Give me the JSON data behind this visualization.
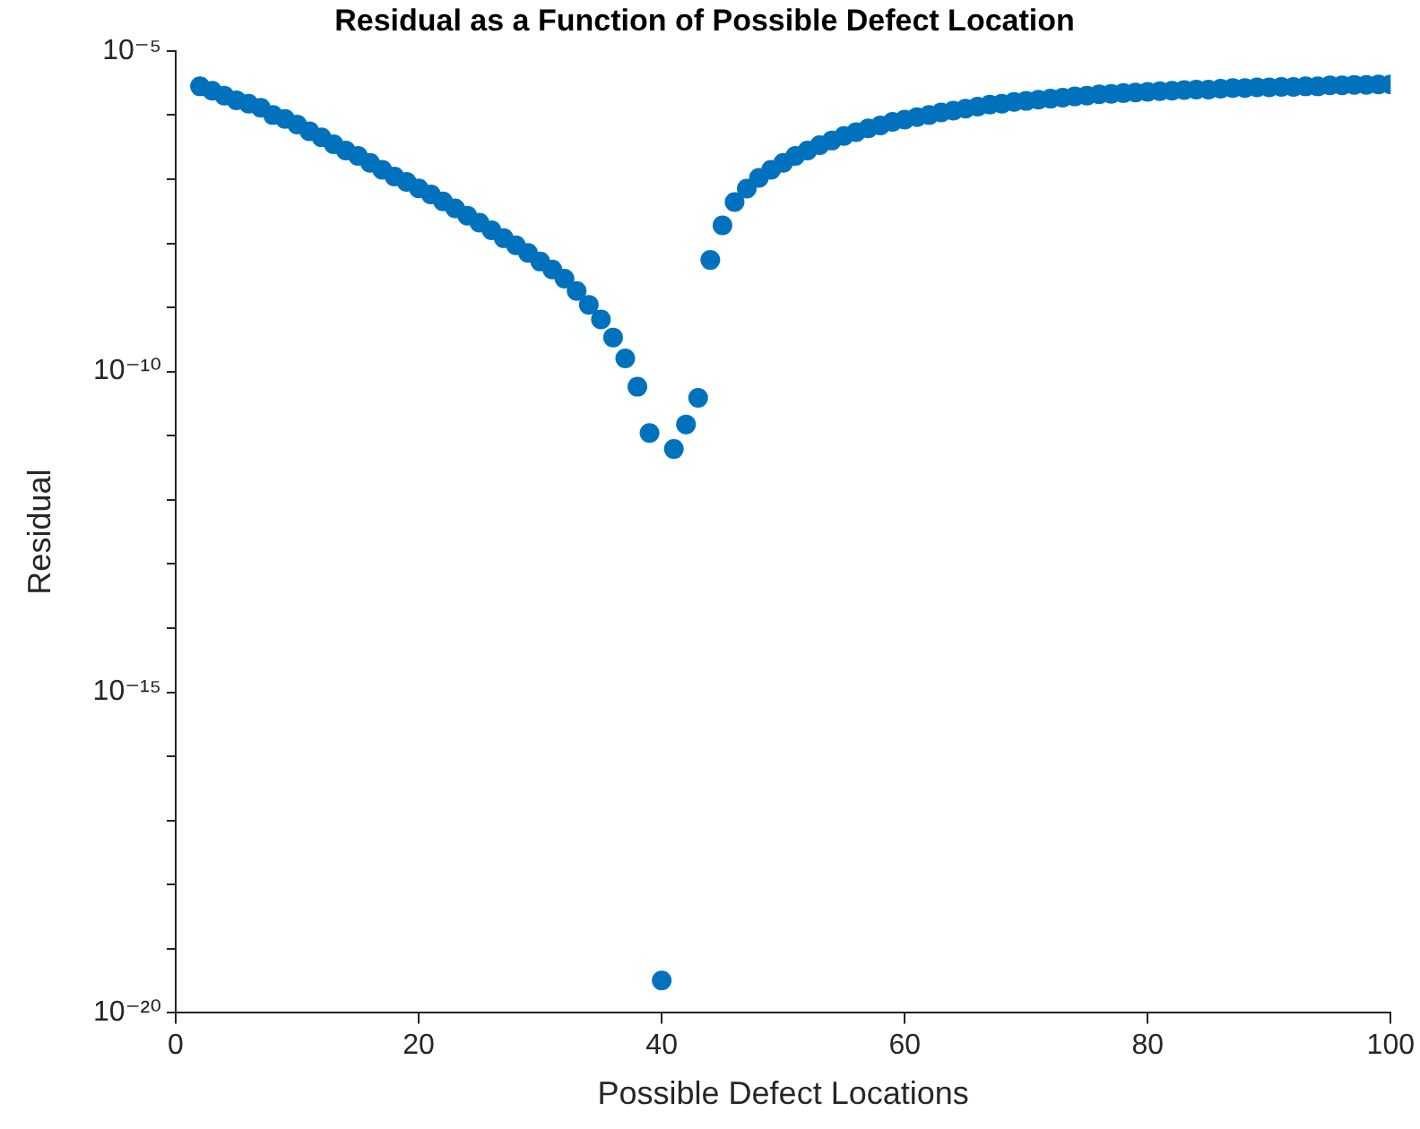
{
  "chart_data": {
    "type": "scatter",
    "title": "Residual as a Function of Possible Defect Location",
    "xlabel": "Possible Defect Locations",
    "ylabel": "Residual",
    "log": "y",
    "grid": false,
    "legend": false,
    "marker": "circle",
    "xlim": [
      0,
      100
    ],
    "xticks": [
      0,
      20,
      40,
      60,
      80,
      100
    ],
    "ylim": [
      1e-20,
      1e-05
    ],
    "yticks": [
      {
        "value": 1e-20,
        "label": "10⁻²⁰"
      },
      {
        "value": 1e-19,
        "label": null
      },
      {
        "value": 1e-18,
        "label": null
      },
      {
        "value": 1e-17,
        "label": null
      },
      {
        "value": 1e-16,
        "label": null
      },
      {
        "value": 1e-15,
        "label": "10⁻¹⁵"
      },
      {
        "value": 1e-14,
        "label": null
      },
      {
        "value": 1e-13,
        "label": null
      },
      {
        "value": 1e-12,
        "label": null
      },
      {
        "value": 1e-11,
        "label": null
      },
      {
        "value": 1e-10,
        "label": "10⁻¹⁰"
      },
      {
        "value": 1e-09,
        "label": null
      },
      {
        "value": 1e-08,
        "label": null
      },
      {
        "value": 1e-07,
        "label": null
      },
      {
        "value": 1e-06,
        "label": null
      },
      {
        "value": 1e-05,
        "label": "10⁻⁵"
      }
    ],
    "x": [
      2,
      3,
      4,
      5,
      6,
      7,
      8,
      9,
      10,
      11,
      12,
      13,
      14,
      15,
      16,
      17,
      18,
      19,
      20,
      21,
      22,
      23,
      24,
      25,
      26,
      27,
      28,
      29,
      30,
      31,
      32,
      33,
      34,
      35,
      36,
      37,
      38,
      39,
      40,
      41,
      42,
      43,
      44,
      45,
      46,
      47,
      48,
      49,
      50,
      51,
      52,
      53,
      54,
      55,
      56,
      57,
      58,
      59,
      60,
      61,
      62,
      63,
      64,
      65,
      66,
      67,
      68,
      69,
      70,
      71,
      72,
      73,
      74,
      75,
      76,
      77,
      78,
      79,
      80,
      81,
      82,
      83,
      84,
      85,
      86,
      87,
      88,
      89,
      90,
      91,
      92,
      93,
      94,
      95,
      96,
      97,
      98,
      99,
      100
    ],
    "series": [
      {
        "color": "#0072bd",
        "values": [
          2.8e-06,
          2.4e-06,
          2e-06,
          1.7e-06,
          1.5e-06,
          1.3e-06,
          1e-06,
          8.7e-07,
          7.1e-07,
          5.6e-07,
          4.5e-07,
          3.5e-07,
          2.8e-07,
          2.3e-07,
          1.8e-07,
          1.4e-07,
          1.1e-07,
          9.1e-08,
          7.2e-08,
          5.8e-08,
          4.5e-08,
          3.5e-08,
          2.7e-08,
          2.1e-08,
          1.6e-08,
          1.2e-08,
          9.3e-09,
          7.1e-09,
          5.2e-09,
          3.9e-09,
          2.8e-09,
          1.8e-09,
          1.1e-09,
          6.5e-10,
          3.4e-10,
          1.6e-10,
          5.8e-11,
          1.1e-11,
          3.2e-20,
          6.2e-12,
          1.5e-11,
          3.9e-11,
          5.5e-09,
          1.9e-08,
          4.4e-08,
          7.1e-08,
          1.05e-07,
          1.4e-07,
          1.8e-07,
          2.3e-07,
          2.8e-07,
          3.4e-07,
          4e-07,
          4.7e-07,
          5.4e-07,
          6.2e-07,
          6.9e-07,
          7.8e-07,
          8.5e-07,
          9.3e-07,
          1e-06,
          1.1e-06,
          1.17e-06,
          1.26e-06,
          1.35e-06,
          1.45e-06,
          1.5e-06,
          1.6e-06,
          1.66e-06,
          1.74e-06,
          1.8e-06,
          1.86e-06,
          1.95e-06,
          2e-06,
          2.1e-06,
          2.14e-06,
          2.2e-06,
          2.24e-06,
          2.3e-06,
          2.35e-06,
          2.4e-06,
          2.45e-06,
          2.5e-06,
          2.5e-06,
          2.57e-06,
          2.63e-06,
          2.63e-06,
          2.7e-06,
          2.7e-06,
          2.75e-06,
          2.75e-06,
          2.8e-06,
          2.8e-06,
          2.9e-06,
          2.9e-06,
          2.95e-06,
          2.95e-06,
          3e-06,
          3e-06
        ]
      }
    ]
  }
}
